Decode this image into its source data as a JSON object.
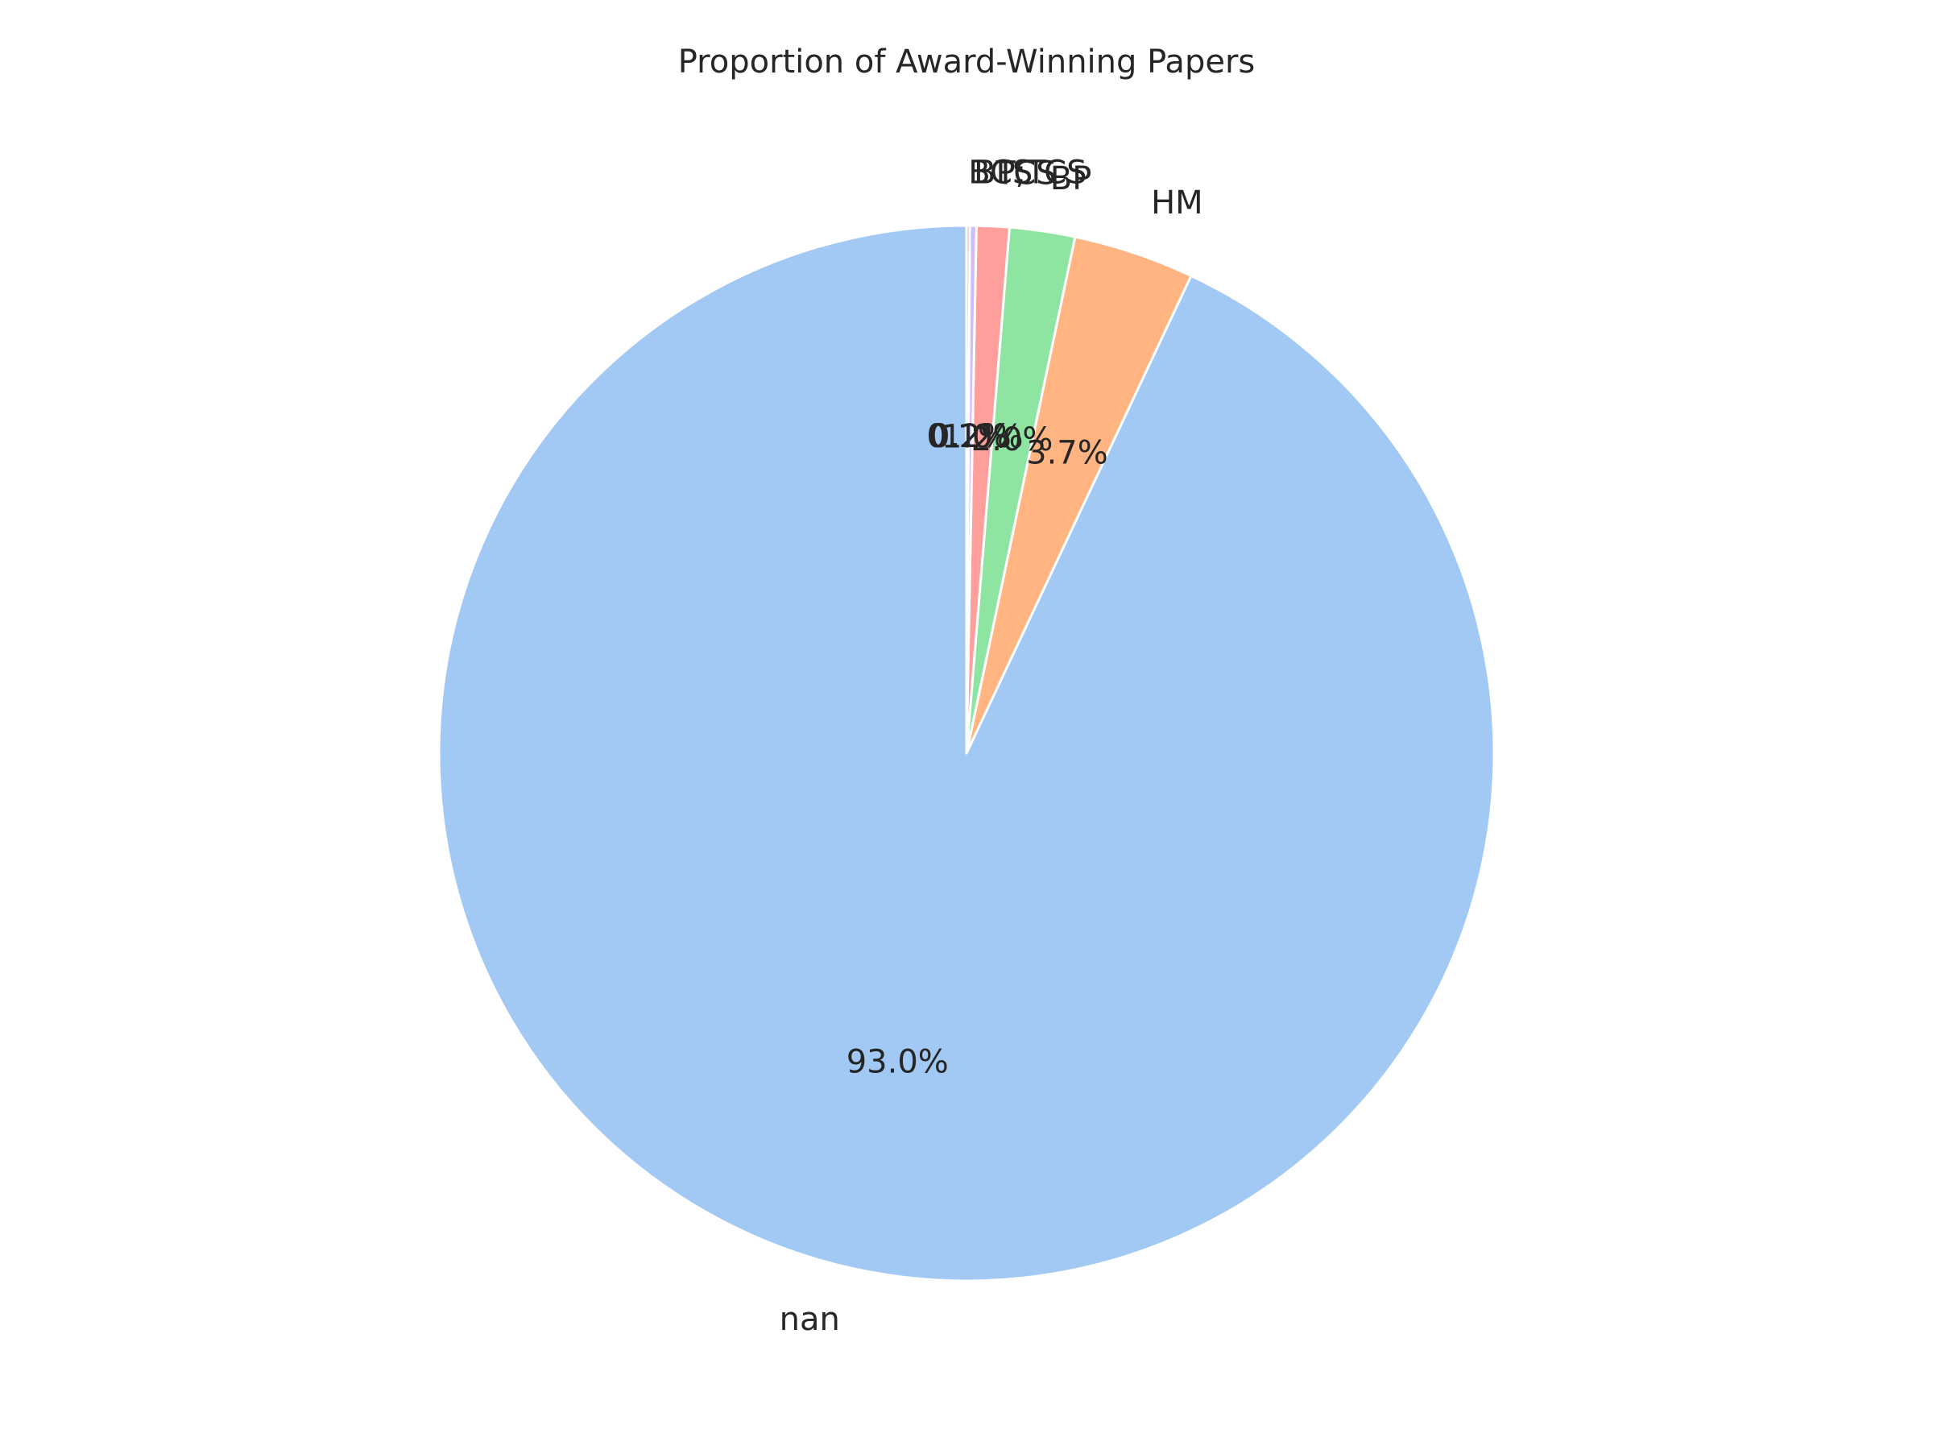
{
  "chart_data": {
    "type": "pie",
    "title": "Proportion of Award-Winning Papers",
    "categories": [
      "nan",
      "HM",
      "BP",
      "TCS",
      "BP;TCS",
      "BCS"
    ],
    "values": [
      93.0,
      3.7,
      2.0,
      1.0,
      0.2,
      0.1
    ],
    "value_labels": [
      "93.0%",
      "3.7%",
      "2.0%",
      "1.0%",
      "0.2%",
      "0.1%"
    ],
    "colors": [
      "#a1c9f4",
      "#ffb482",
      "#8de5a1",
      "#ff9f9b",
      "#d0bbff",
      "#debb9b"
    ],
    "start_angle_deg": 90,
    "direction": "counterclockwise",
    "legend": "none"
  }
}
